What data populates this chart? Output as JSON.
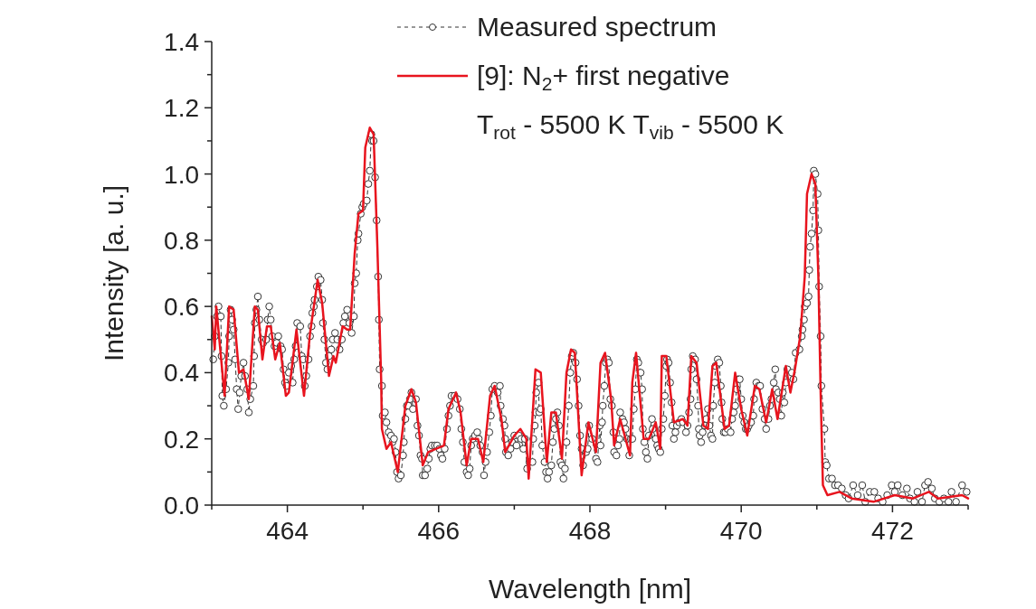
{
  "chart_data": {
    "type": "line",
    "xlabel": "Wavelength [nm]",
    "ylabel": "Intensity [a. u.]",
    "xlim": [
      463,
      473
    ],
    "ylim": [
      0,
      1.4
    ],
    "xticks": [
      {
        "value": 463,
        "label": null
      },
      464,
      {
        "value": 465,
        "label": null
      },
      466,
      {
        "value": 467,
        "label": null
      },
      468,
      {
        "value": 469,
        "label": null
      },
      470,
      {
        "value": 471,
        "label": null
      },
      472,
      {
        "value": 473,
        "label": null
      }
    ],
    "yticks": [
      {
        "value": 0,
        "label": "0.0"
      },
      {
        "value": 0.1,
        "label": null
      },
      {
        "value": 0.2,
        "label": "0.2"
      },
      {
        "value": 0.3,
        "label": null
      },
      {
        "value": 0.4,
        "label": "0.4"
      },
      {
        "value": 0.5,
        "label": null
      },
      {
        "value": 0.6,
        "label": "0.6"
      },
      {
        "value": 0.7,
        "label": null
      },
      {
        "value": 0.8,
        "label": "0.8"
      },
      {
        "value": 0.9,
        "label": null
      },
      {
        "value": 1.0,
        "label": "1.0"
      },
      {
        "value": 1.1,
        "label": null
      },
      {
        "value": 1.2,
        "label": "1.2"
      },
      {
        "value": 1.3,
        "label": null
      },
      {
        "value": 1.4,
        "label": "1.4"
      }
    ],
    "legend": "top right",
    "annotations": [
      "T$_{rot}$ - 5500 K   T$_{vib}$ - 5500 K"
    ],
    "series": [
      {
        "name": "Measured spectrum",
        "color": "#333333",
        "marker": "circle",
        "line_style": "dashed",
        "x": [
          463.02,
          463.04,
          463.07,
          463.09,
          463.12,
          463.13,
          463.14,
          463.16,
          463.19,
          463.22,
          463.23,
          463.25,
          463.27,
          463.29,
          463.31,
          463.33,
          463.35,
          463.37,
          463.39,
          463.42,
          463.44,
          463.47,
          463.49,
          463.51,
          463.55,
          463.56,
          463.57,
          463.59,
          463.61,
          463.63,
          463.66,
          463.68,
          463.72,
          463.74,
          463.76,
          463.78,
          463.8,
          463.83,
          463.86,
          463.88,
          463.91,
          463.93,
          463.95,
          463.97,
          463.99,
          464.02,
          464.05,
          464.07,
          464.09,
          464.11,
          464.13,
          464.17,
          464.19,
          464.21,
          464.23,
          464.25,
          464.28,
          464.3,
          464.32,
          464.33,
          464.35,
          464.36,
          464.39,
          464.41,
          464.44,
          464.46,
          464.47,
          464.49,
          464.51,
          464.53,
          464.55,
          464.58,
          464.6,
          464.63,
          464.66,
          464.69,
          464.72,
          464.74,
          464.76,
          464.79,
          464.82,
          464.85,
          464.88,
          464.89,
          464.91,
          464.93,
          464.94,
          464.97,
          464.99,
          465.01,
          465.05,
          465.07,
          465.09,
          465.11,
          465.12,
          465.14,
          465.16,
          465.18,
          465.2,
          465.21,
          465.22,
          465.25,
          465.26,
          465.29,
          465.31,
          465.34,
          465.37,
          465.39,
          465.41,
          465.43,
          465.45,
          465.47,
          465.5,
          465.53,
          465.54,
          465.56,
          465.58,
          465.6,
          465.62,
          465.64,
          465.66,
          465.7,
          465.72,
          465.74,
          465.76,
          465.78,
          465.79,
          465.82,
          465.85,
          465.87,
          465.89,
          465.91,
          465.95,
          465.98,
          466.01,
          466.03,
          466.05,
          466.08,
          466.11,
          466.13,
          466.15,
          466.17,
          466.21,
          466.25,
          466.28,
          466.3,
          466.32,
          466.34,
          466.37,
          466.39,
          466.41,
          466.43,
          466.45,
          466.48,
          466.51,
          466.53,
          466.55,
          466.58,
          466.6,
          466.62,
          466.64,
          466.67,
          466.69,
          466.71,
          466.74,
          466.78,
          466.81,
          466.82,
          466.85,
          466.87,
          466.88,
          466.89,
          466.92,
          466.95,
          466.97,
          467.0,
          467.03,
          467.06,
          467.09,
          467.12,
          467.14,
          467.17,
          467.2,
          467.24,
          467.25,
          467.27,
          467.28,
          467.29,
          467.32,
          467.33,
          467.35,
          467.37,
          467.4,
          467.42,
          467.44,
          467.46,
          467.49,
          467.51,
          467.53,
          467.55,
          467.57,
          467.59,
          467.61,
          467.63,
          467.65,
          467.67,
          467.69,
          467.72,
          467.74,
          467.76,
          467.78,
          467.81,
          467.83,
          467.85,
          467.87,
          467.89,
          467.91,
          467.95,
          467.97,
          467.99,
          468.03,
          468.08,
          468.1,
          468.13,
          468.14,
          468.16,
          468.17,
          468.19,
          468.21,
          468.23,
          468.25,
          468.27,
          468.29,
          468.31,
          468.32,
          468.35,
          468.37,
          468.39,
          468.4,
          468.43,
          468.45,
          468.47,
          468.49,
          468.52,
          468.54,
          468.56,
          468.58,
          468.6,
          468.62,
          468.64,
          468.67,
          468.69,
          468.7,
          468.72,
          468.74,
          468.76,
          468.78,
          468.82,
          468.83,
          468.87,
          468.89,
          468.91,
          468.93,
          468.95,
          468.97,
          468.99,
          469.01,
          469.02,
          469.04,
          469.06,
          469.08,
          469.09,
          469.11,
          469.13,
          469.15,
          469.18,
          469.21,
          469.23,
          469.27,
          469.29,
          469.31,
          469.33,
          469.34,
          469.36,
          469.39,
          469.41,
          469.43,
          469.44,
          469.45,
          469.47,
          469.49,
          469.52,
          469.54,
          469.56,
          469.58,
          469.6,
          469.62,
          469.63,
          469.65,
          469.66,
          469.69,
          469.71,
          469.73,
          469.74,
          469.75,
          469.77,
          469.79,
          469.82,
          469.86,
          469.88,
          469.9,
          469.92,
          469.94,
          469.96,
          469.98,
          470.0,
          470.02,
          470.04,
          470.06,
          470.08,
          470.1,
          470.13,
          470.16,
          470.17,
          470.2,
          470.23,
          470.25,
          470.28,
          470.31,
          470.33,
          470.36,
          470.38,
          470.4,
          470.43,
          470.45,
          470.46,
          470.49,
          470.51,
          470.53,
          470.55,
          470.57,
          470.59,
          470.61,
          470.64,
          470.67,
          470.69,
          470.72,
          470.77,
          470.8,
          470.81,
          470.83,
          470.84,
          470.87,
          470.89,
          470.9,
          470.91,
          470.93,
          470.95,
          470.96,
          470.98,
          471.01,
          471.02,
          471.03,
          471.05,
          471.06,
          471.1,
          471.11,
          471.13,
          471.16,
          471.2,
          471.24,
          471.28,
          471.33,
          471.38,
          471.42,
          471.48,
          471.54,
          471.6,
          471.64,
          471.7,
          471.76,
          471.81,
          471.87,
          471.93,
          471.99,
          472.03,
          472.07,
          472.13,
          472.19,
          472.23,
          472.29,
          472.33,
          472.39,
          472.43,
          472.47,
          472.52,
          472.56,
          472.62,
          472.68,
          472.74,
          472.78,
          472.84,
          472.92,
          472.98
        ],
        "values": [
          0.44,
          0.51,
          0.57,
          0.6,
          0.57,
          0.45,
          0.33,
          0.3,
          0.35,
          0.43,
          0.51,
          0.59,
          0.56,
          0.53,
          0.44,
          0.35,
          0.29,
          0.34,
          0.39,
          0.43,
          0.39,
          0.35,
          0.28,
          0.32,
          0.36,
          0.45,
          0.55,
          0.59,
          0.63,
          0.56,
          0.5,
          0.49,
          0.5,
          0.56,
          0.6,
          0.56,
          0.51,
          0.48,
          0.49,
          0.51,
          0.48,
          0.47,
          0.41,
          0.37,
          0.36,
          0.4,
          0.42,
          0.37,
          0.44,
          0.48,
          0.55,
          0.54,
          0.45,
          0.44,
          0.36,
          0.39,
          0.44,
          0.51,
          0.54,
          0.58,
          0.6,
          0.62,
          0.66,
          0.69,
          0.68,
          0.62,
          0.55,
          0.5,
          0.43,
          0.41,
          0.45,
          0.47,
          0.5,
          0.52,
          0.5,
          0.47,
          0.5,
          0.55,
          0.57,
          0.59,
          0.55,
          0.52,
          0.57,
          0.67,
          0.7,
          0.8,
          0.82,
          0.88,
          0.9,
          0.91,
          0.92,
          0.97,
          1.01,
          1.12,
          1.1,
          1.1,
          0.99,
          0.86,
          0.69,
          0.56,
          0.41,
          0.36,
          0.27,
          0.28,
          0.25,
          0.22,
          0.21,
          0.19,
          0.2,
          0.16,
          0.1,
          0.08,
          0.09,
          0.15,
          0.19,
          0.26,
          0.3,
          0.3,
          0.32,
          0.34,
          0.29,
          0.32,
          0.24,
          0.21,
          0.15,
          0.14,
          0.09,
          0.09,
          0.11,
          0.14,
          0.17,
          0.18,
          0.18,
          0.18,
          0.17,
          0.15,
          0.14,
          0.17,
          0.23,
          0.27,
          0.3,
          0.33,
          0.33,
          0.32,
          0.29,
          0.23,
          0.19,
          0.13,
          0.1,
          0.09,
          0.11,
          0.18,
          0.2,
          0.21,
          0.22,
          0.2,
          0.18,
          0.16,
          0.09,
          0.13,
          0.16,
          0.22,
          0.27,
          0.35,
          0.36,
          0.34,
          0.36,
          0.3,
          0.26,
          0.24,
          0.2,
          0.16,
          0.15,
          0.17,
          0.19,
          0.21,
          0.18,
          0.21,
          0.2,
          0.17,
          0.2,
          0.11,
          0.13,
          0.13,
          0.2,
          0.24,
          0.28,
          0.34,
          0.37,
          0.28,
          0.29,
          0.18,
          0.13,
          0.1,
          0.08,
          0.1,
          0.12,
          0.19,
          0.23,
          0.26,
          0.28,
          0.24,
          0.13,
          0.12,
          0.08,
          0.11,
          0.19,
          0.3,
          0.4,
          0.45,
          0.46,
          0.43,
          0.38,
          0.3,
          0.21,
          0.17,
          0.12,
          0.16,
          0.17,
          0.24,
          0.2,
          0.14,
          0.13,
          0.24,
          0.18,
          0.25,
          0.3,
          0.36,
          0.43,
          0.44,
          0.43,
          0.32,
          0.3,
          0.22,
          0.16,
          0.15,
          0.18,
          0.2,
          0.28,
          0.26,
          0.25,
          0.23,
          0.2,
          0.15,
          0.2,
          0.2,
          0.29,
          0.35,
          0.44,
          0.43,
          0.4,
          0.35,
          0.23,
          0.19,
          0.16,
          0.14,
          0.21,
          0.26,
          0.23,
          0.2,
          0.18,
          0.17,
          0.16,
          0.23,
          0.26,
          0.33,
          0.42,
          0.44,
          0.43,
          0.37,
          0.31,
          0.24,
          0.2,
          0.22,
          0.24,
          0.25,
          0.26,
          0.25,
          0.22,
          0.24,
          0.28,
          0.32,
          0.41,
          0.45,
          0.44,
          0.38,
          0.3,
          0.23,
          0.21,
          0.19,
          0.22,
          0.24,
          0.26,
          0.29,
          0.24,
          0.21,
          0.2,
          0.3,
          0.37,
          0.42,
          0.44,
          0.43,
          0.36,
          0.31,
          0.26,
          0.22,
          0.22,
          0.23,
          0.22,
          0.26,
          0.28,
          0.3,
          0.35,
          0.38,
          0.38,
          0.32,
          0.27,
          0.25,
          0.23,
          0.23,
          0.24,
          0.25,
          0.27,
          0.32,
          0.37,
          0.36,
          0.36,
          0.29,
          0.26,
          0.23,
          0.26,
          0.3,
          0.32,
          0.37,
          0.41,
          0.35,
          0.34,
          0.32,
          0.27,
          0.34,
          0.31,
          0.37,
          0.41,
          0.39,
          0.4,
          0.38,
          0.46,
          0.47,
          0.51,
          0.53,
          0.56,
          0.6,
          0.61,
          0.63,
          0.71,
          0.78,
          0.82,
          0.89,
          1.01,
          1.0,
          0.94,
          0.83,
          0.66,
          0.51,
          0.36,
          0.23,
          0.13,
          0.12,
          0.08,
          0.08,
          0.06,
          0.06,
          0.05,
          0.03,
          0.02,
          0.06,
          0.03,
          0.06,
          0.01,
          0.04,
          0.04,
          0.02,
          0.01,
          0.03,
          0.06,
          0.04,
          0.06,
          0.03,
          0.05,
          0.02,
          0.01,
          0.04,
          0.01,
          0.06,
          0.07,
          0.05,
          0.02,
          0.01,
          0.02,
          0.01,
          0.04,
          0.01,
          0.06,
          0.04
        ]
      },
      {
        "name": "[9]: N$_{2}$+ first negative",
        "color": "#e8141e",
        "line_style": "solid",
        "x": [
          463.0,
          463.04,
          463.06,
          463.17,
          463.23,
          463.29,
          463.36,
          463.42,
          463.49,
          463.57,
          463.61,
          463.67,
          463.73,
          463.78,
          463.84,
          463.9,
          463.98,
          464.02,
          464.12,
          464.22,
          464.3,
          464.4,
          464.46,
          464.55,
          464.61,
          464.64,
          464.73,
          464.79,
          464.83,
          464.89,
          464.94,
          465.0,
          465.03,
          465.09,
          465.14,
          465.19,
          465.24,
          465.25,
          465.31,
          465.37,
          465.46,
          465.56,
          465.64,
          465.7,
          465.79,
          465.86,
          466.07,
          466.13,
          466.23,
          466.29,
          466.37,
          466.43,
          466.52,
          466.59,
          466.68,
          466.74,
          466.83,
          466.88,
          467.0,
          467.08,
          467.16,
          467.19,
          467.28,
          467.35,
          467.43,
          467.49,
          467.55,
          467.63,
          467.69,
          467.75,
          467.8,
          467.89,
          467.98,
          468.08,
          468.14,
          468.2,
          468.28,
          468.32,
          468.4,
          468.53,
          468.56,
          468.61,
          468.71,
          468.78,
          468.87,
          468.93,
          468.95,
          469.01,
          469.11,
          469.23,
          469.29,
          469.34,
          469.41,
          469.5,
          469.56,
          469.62,
          469.67,
          469.78,
          469.84,
          469.92,
          470.0,
          470.08,
          470.18,
          470.24,
          470.33,
          470.41,
          470.48,
          470.59,
          470.65,
          470.71,
          470.78,
          470.84,
          470.87,
          470.93,
          470.98,
          471.02,
          471.05,
          471.08,
          471.14,
          471.3,
          471.46,
          471.75,
          472.03,
          472.27,
          472.48,
          472.6,
          472.92,
          473.0
        ],
        "values": [
          0.57,
          0.47,
          0.6,
          0.33,
          0.6,
          0.59,
          0.4,
          0.41,
          0.32,
          0.6,
          0.59,
          0.44,
          0.54,
          0.54,
          0.44,
          0.49,
          0.33,
          0.34,
          0.53,
          0.33,
          0.52,
          0.68,
          0.61,
          0.39,
          0.45,
          0.43,
          0.54,
          0.53,
          0.53,
          0.76,
          0.88,
          0.89,
          1.08,
          1.14,
          1.12,
          0.78,
          0.38,
          0.23,
          0.17,
          0.19,
          0.1,
          0.3,
          0.35,
          0.31,
          0.12,
          0.16,
          0.18,
          0.29,
          0.34,
          0.28,
          0.12,
          0.2,
          0.2,
          0.13,
          0.33,
          0.36,
          0.26,
          0.16,
          0.21,
          0.23,
          0.2,
          0.08,
          0.41,
          0.4,
          0.13,
          0.28,
          0.28,
          0.14,
          0.4,
          0.47,
          0.46,
          0.09,
          0.25,
          0.16,
          0.43,
          0.46,
          0.32,
          0.18,
          0.26,
          0.15,
          0.37,
          0.46,
          0.2,
          0.2,
          0.25,
          0.17,
          0.45,
          0.45,
          0.25,
          0.26,
          0.24,
          0.45,
          0.43,
          0.24,
          0.23,
          0.42,
          0.43,
          0.23,
          0.24,
          0.4,
          0.29,
          0.21,
          0.36,
          0.35,
          0.25,
          0.35,
          0.26,
          0.42,
          0.34,
          0.41,
          0.51,
          0.69,
          0.94,
          1.0,
          0.97,
          0.69,
          0.34,
          0.06,
          0.03,
          0.04,
          0.02,
          0.01,
          0.03,
          0.02,
          0.04,
          0.02,
          0.03,
          0.02
        ]
      }
    ]
  }
}
